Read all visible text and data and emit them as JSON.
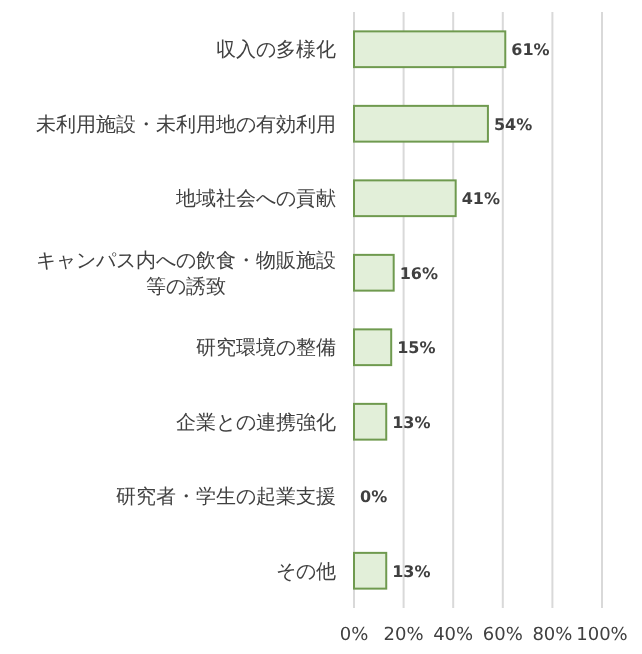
{
  "chart_data": {
    "type": "bar",
    "orientation": "horizontal",
    "categories": [
      "収入の多様化",
      "未利用施設・未利用地の有効利用",
      "地域社会への貢献",
      "キャンパス内への飲食・物販施設等の誘致",
      "研究環境の整備",
      "企業との連携強化",
      "研究者・学生の起業支援",
      "その他"
    ],
    "values": [
      61,
      54,
      41,
      16,
      15,
      13,
      0,
      13
    ],
    "value_labels": [
      "61%",
      "54%",
      "41%",
      "16%",
      "15%",
      "13%",
      "0%",
      "13%"
    ],
    "color": "#e2efd9",
    "xlim": [
      0,
      100
    ],
    "xticks": [
      {
        "value": 0,
        "label": "0%"
      },
      {
        "value": 20,
        "label": "20%"
      },
      {
        "value": 40,
        "label": "40%"
      },
      {
        "value": 60,
        "label": "60%"
      },
      {
        "value": 80,
        "label": "80%"
      },
      {
        "value": 100,
        "label": "100%"
      }
    ],
    "grid": "x"
  }
}
